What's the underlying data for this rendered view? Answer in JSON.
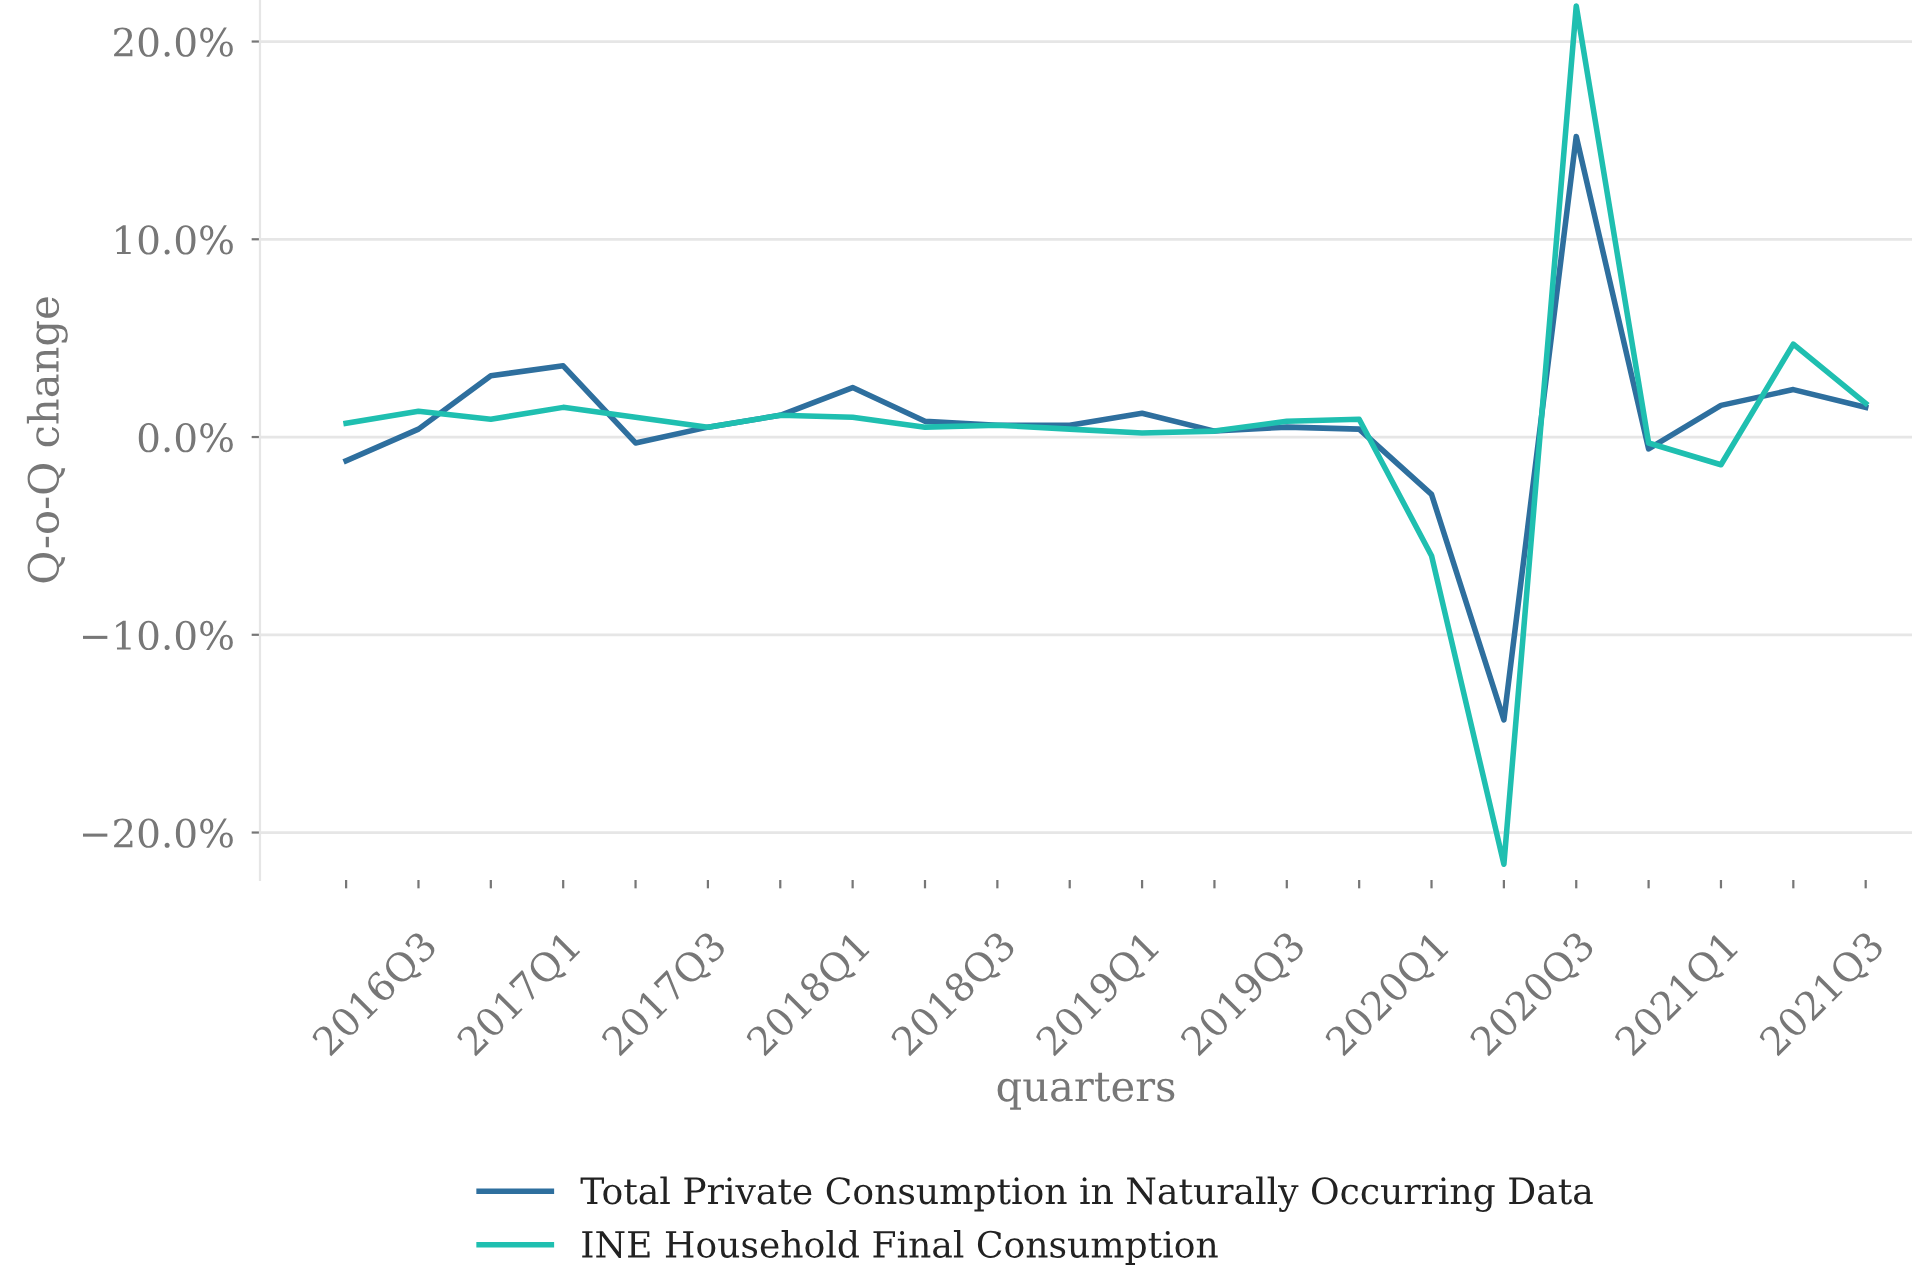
{
  "chart_data": {
    "type": "line",
    "xlabel": "quarters",
    "ylabel": "Q-o-Q change",
    "categories": [
      null,
      "2016Q3",
      null,
      "2017Q1",
      null,
      "2017Q3",
      null,
      "2018Q1",
      null,
      "2018Q3",
      null,
      "2019Q1",
      null,
      "2019Q3",
      null,
      "2020Q1",
      null,
      "2020Q3",
      null,
      "2021Q1",
      null,
      "2021Q3"
    ],
    "series": [
      {
        "name": "Total Private Consumption in Naturally Occurring Data",
        "color": "#2e6f9e",
        "values": [
          -1.2,
          0.4,
          3.1,
          3.6,
          -0.3,
          0.5,
          1.1,
          2.5,
          0.8,
          0.6,
          0.6,
          1.2,
          0.3,
          0.5,
          0.4,
          -2.9,
          -14.3,
          15.2,
          -0.6,
          1.6,
          2.4,
          1.5
        ]
      },
      {
        "name": "INE Household Final Consumption",
        "color": "#1fbfb0",
        "values": [
          0.7,
          1.3,
          0.9,
          1.5,
          1.0,
          0.5,
          1.1,
          1.0,
          0.5,
          0.6,
          0.4,
          0.2,
          0.3,
          0.8,
          0.9,
          -6.0,
          -21.6,
          21.8,
          -0.3,
          -1.4,
          4.7,
          1.7
        ]
      }
    ],
    "ylim": [
      -22.4,
      22.1
    ],
    "yticks": [
      {
        "value": -20,
        "label": "−20.0%"
      },
      {
        "value": -10,
        "label": "−10.0%"
      },
      {
        "value": 0,
        "label": "0.0%"
      },
      {
        "value": 10,
        "label": "10.0%"
      },
      {
        "value": 20,
        "label": "20.0%"
      }
    ],
    "grid": "y",
    "legend": "bottom",
    "marker": "none",
    "line_style": "solid"
  }
}
